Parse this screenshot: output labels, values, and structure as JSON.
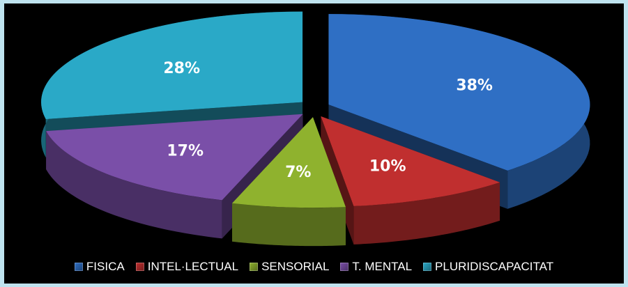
{
  "chart_data": {
    "type": "pie",
    "title": "",
    "categories": [
      "FISICA",
      "INTEL·LECTUAL",
      "SENSORIAL",
      "T. MENTAL",
      "PLURIDISCAPACITAT"
    ],
    "values": [
      38,
      10,
      7,
      17,
      28
    ],
    "labels": [
      "38%",
      "10%",
      "7%",
      "17%",
      "28%"
    ],
    "colors": [
      "#2f6fc4",
      "#c02f2f",
      "#8fb22e",
      "#7a4fa8",
      "#2aa9c7"
    ],
    "style": "3d-exploded",
    "legend": "bottom"
  }
}
